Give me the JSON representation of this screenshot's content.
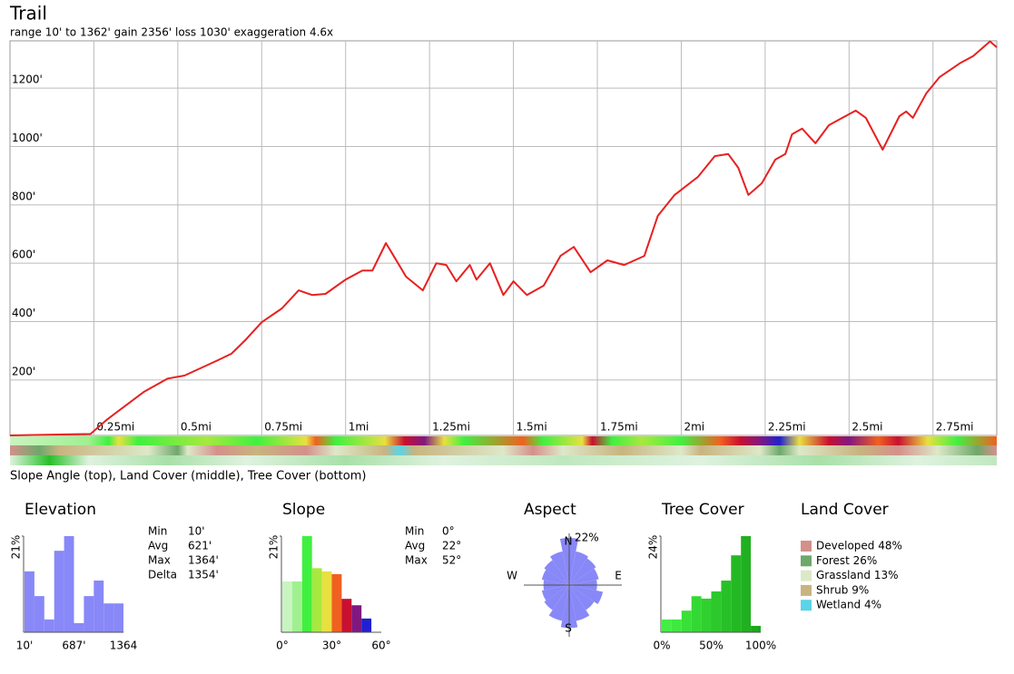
{
  "chart_data": [
    {
      "type": "line",
      "title": "Trail",
      "subtitle": "range 10' to 1362'  gain 2356'  loss 1030'  exaggeration 4.6x",
      "x": [
        0,
        0.24,
        0.29,
        0.4,
        0.47,
        0.52,
        0.62,
        0.66,
        0.7,
        0.75,
        0.81,
        0.86,
        0.9,
        0.94,
        1.0,
        1.05,
        1.08,
        1.12,
        1.14,
        1.18,
        1.23,
        1.27,
        1.3,
        1.33,
        1.37,
        1.39,
        1.43,
        1.47,
        1.5,
        1.54,
        1.59,
        1.64,
        1.68,
        1.73,
        1.78,
        1.83,
        1.89,
        1.93,
        1.98,
        2.05,
        2.1,
        2.14,
        2.17,
        2.2,
        2.24,
        2.28,
        2.31,
        2.33,
        2.36,
        2.4,
        2.44,
        2.48,
        2.52,
        2.55,
        2.6,
        2.65,
        2.67,
        2.69,
        2.73,
        2.77,
        2.83,
        2.87,
        2.92,
        2.94
      ],
      "series": [
        {
          "color": "#e82020",
          "values": [
            10,
            15,
            65,
            160,
            205,
            215,
            268,
            290,
            335,
            398,
            445,
            507,
            491,
            495,
            544,
            575,
            575,
            669,
            631,
            554,
            507,
            600,
            594,
            538,
            594,
            544,
            600,
            491,
            538,
            491,
            523,
            625,
            656,
            569,
            610,
            594,
            625,
            762,
            834,
            896,
            967,
            974,
            927,
            834,
            874,
            955,
            974,
            1042,
            1061,
            1011,
            1073,
            1098,
            1123,
            1098,
            989,
            1104,
            1120,
            1098,
            1182,
            1238,
            1285,
            1310,
            1360,
            1340
          ]
        }
      ],
      "xlim": [
        0,
        2.94
      ],
      "xticks": [
        {
          "value": 0.25,
          "label": "0.25mi"
        },
        {
          "value": 0.5,
          "label": "0.5mi"
        },
        {
          "value": 0.75,
          "label": "0.75mi"
        },
        {
          "value": 1,
          "label": "1mi"
        },
        {
          "value": 1.25,
          "label": "1.25mi"
        },
        {
          "value": 1.5,
          "label": "1.5mi"
        },
        {
          "value": 1.75,
          "label": "1.75mi"
        },
        {
          "value": 2,
          "label": "2mi"
        },
        {
          "value": 2.25,
          "label": "2.25mi"
        },
        {
          "value": 2.5,
          "label": "2.5mi"
        },
        {
          "value": 2.75,
          "label": "2.75mi"
        }
      ],
      "ylim": [
        10,
        1362
      ],
      "yticks": [
        {
          "value": 200,
          "label": "200'"
        },
        {
          "value": 400,
          "label": "400'"
        },
        {
          "value": 600,
          "label": "600'"
        },
        {
          "value": 800,
          "label": "800'"
        },
        {
          "value": 1000,
          "label": "1000'"
        },
        {
          "value": 1200,
          "label": "1200'"
        }
      ],
      "grid": true
    },
    {
      "type": "histogram",
      "title": "Elevation",
      "bins": [
        10,
        145.4,
        280.8,
        416.2,
        551.6,
        687,
        822.4,
        957.8,
        1093.2,
        1228.6,
        1364
      ],
      "values": [
        13.3,
        7.9,
        2.8,
        17.8,
        21,
        2,
        7.9,
        11.3,
        6.3,
        6.3
      ],
      "colors": [
        "#8888f8",
        "#8888f8",
        "#8888f8",
        "#8888f8",
        "#8888f8",
        "#8888f8",
        "#8888f8",
        "#8888f8",
        "#8888f8",
        "#8888f8"
      ],
      "xlim": [
        10,
        1364
      ],
      "xticks": [
        {
          "value": 10,
          "label": "10'"
        },
        {
          "value": 687,
          "label": "687'"
        },
        1364
      ],
      "ylim": [
        0,
        21
      ],
      "yticks": [
        {
          "value": 21,
          "label": "21%"
        }
      ]
    },
    {
      "type": "histogram",
      "title": "Slope",
      "bins": [
        0,
        6,
        12,
        18,
        24,
        30,
        36,
        42,
        48,
        54
      ],
      "values": [
        11.1,
        11.1,
        21,
        14,
        13.3,
        12.7,
        7.3,
        5.9,
        3
      ],
      "colors": [
        "#c8f4c0",
        "#a0f090",
        "#40f040",
        "#a8e840",
        "#e8e040",
        "#f06020",
        "#c81030",
        "#801880",
        "#2020d0"
      ],
      "xlim": [
        0,
        60
      ],
      "xticks": [
        {
          "value": 0,
          "label": "0°"
        },
        {
          "value": 30,
          "label": "30°"
        },
        {
          "value": 60,
          "label": "60°"
        }
      ],
      "ylim": [
        0,
        21
      ],
      "yticks": [
        {
          "value": 21,
          "label": "21%"
        }
      ]
    },
    {
      "type": "rose",
      "title": "Aspect",
      "categories": [
        "N",
        null,
        null,
        null,
        "E",
        null,
        null,
        null,
        "S",
        null,
        null,
        null,
        "W",
        null,
        null,
        null
      ],
      "values": [
        22,
        16,
        15,
        14,
        13,
        16,
        14,
        17,
        20,
        17,
        14,
        13,
        12,
        13,
        14,
        16
      ],
      "color": "#8888f8",
      "rlim": [
        0,
        22
      ],
      "rticks": [
        {
          "value": 22,
          "label": "22%"
        }
      ]
    },
    {
      "type": "histogram",
      "title": "Tree Cover",
      "bins": [
        0,
        10,
        20,
        30,
        40,
        50,
        60,
        70,
        80,
        90,
        100
      ],
      "values": [
        3.2,
        3.2,
        5.4,
        9,
        8.4,
        10.2,
        12.9,
        19.2,
        24,
        1.6
      ],
      "colors": [
        "#44ee44",
        "#40e840",
        "#38e038",
        "#34d834",
        "#30d030",
        "#2cc82c",
        "#28c028",
        "#24b824",
        "#20b020",
        "#1ca81c"
      ],
      "xlim": [
        0,
        100
      ],
      "xticks": [
        {
          "value": 0,
          "label": "0%"
        },
        {
          "value": 50,
          "label": "50%"
        },
        {
          "value": 100,
          "label": "100%"
        }
      ],
      "ylim": [
        0,
        24
      ],
      "yticks": [
        {
          "value": 24,
          "label": "24%"
        }
      ]
    }
  ],
  "strip_caption": "Slope Angle (top), Land Cover (middle), Tree Cover (bottom)",
  "stats": {
    "elevation": {
      "rows": [
        [
          "Min",
          "10'"
        ],
        [
          "Avg",
          "621'"
        ],
        [
          "Max",
          "1364'"
        ],
        [
          "Delta",
          "1354'"
        ]
      ]
    },
    "slope": {
      "rows": [
        [
          "Min",
          "0°"
        ],
        [
          "Avg",
          "22°"
        ],
        [
          "Max",
          "52°"
        ]
      ]
    }
  },
  "land_cover": {
    "title": "Land Cover",
    "items": [
      {
        "label": "Developed 48%",
        "color": "#d4908a"
      },
      {
        "label": "Forest 26%",
        "color": "#6ea86a"
      },
      {
        "label": "Grassland 13%",
        "color": "#dde8c8"
      },
      {
        "label": "Shrub 9%",
        "color": "#c8b480"
      },
      {
        "label": "Wetland 4%",
        "color": "#5ad4e6"
      }
    ]
  }
}
